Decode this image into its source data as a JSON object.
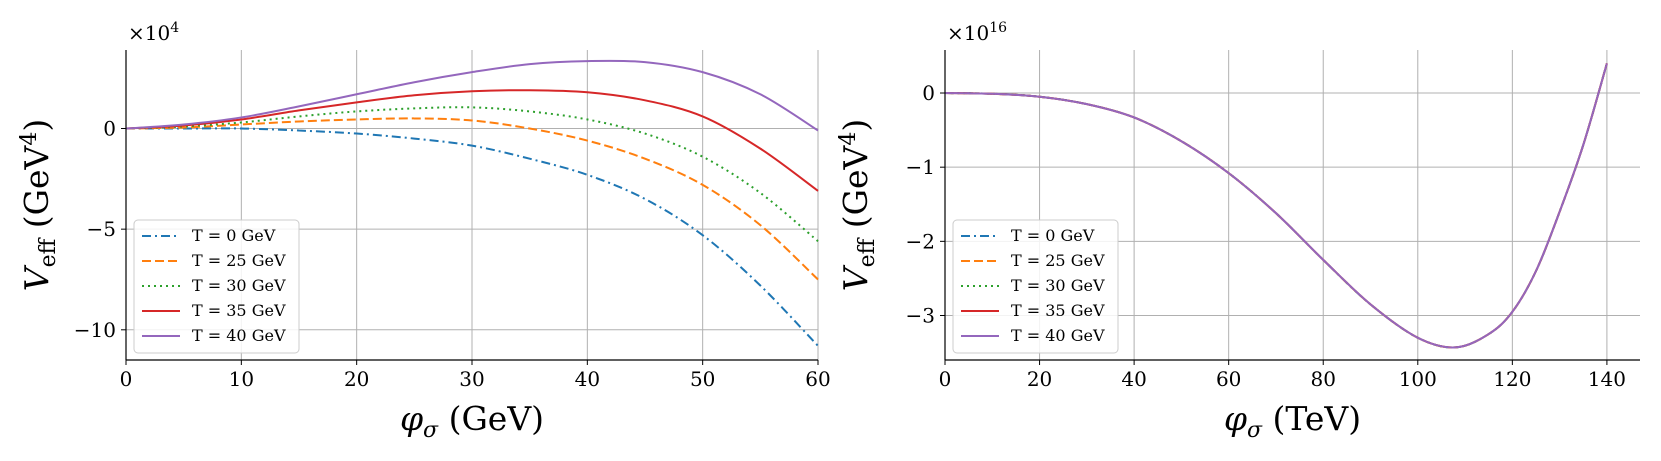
{
  "chart_data": [
    {
      "type": "line",
      "xlabel": "φ_σ (GeV)",
      "ylabel": "V_eff (GeV^4)",
      "multiplier_label": "×10^4",
      "xlim": [
        0,
        60
      ],
      "ylim": [
        -11.5,
        3.9
      ],
      "xticks": [
        0,
        10,
        20,
        30,
        40,
        50,
        60
      ],
      "yticks": [
        0,
        -5,
        -10
      ],
      "grid": true,
      "legend_position": "lower-left",
      "x": [
        0,
        5,
        10,
        15,
        20,
        25,
        30,
        35,
        40,
        45,
        50,
        55,
        60
      ],
      "series": [
        {
          "name": "T = 0 GeV",
          "color": "#1f77b4",
          "dash": "dashdot",
          "values": [
            0,
            0.0,
            0.0,
            -0.1,
            -0.25,
            -0.5,
            -0.85,
            -1.5,
            -2.3,
            -3.5,
            -5.3,
            -7.8,
            -10.8
          ]
        },
        {
          "name": "T = 25 GeV",
          "color": "#ff7f0e",
          "dash": "dashed",
          "values": [
            0,
            0.05,
            0.2,
            0.35,
            0.45,
            0.5,
            0.4,
            0.0,
            -0.6,
            -1.5,
            -2.8,
            -4.8,
            -7.5
          ]
        },
        {
          "name": "T = 30 GeV",
          "color": "#2ca02c",
          "dash": "dotted",
          "values": [
            0,
            0.1,
            0.3,
            0.6,
            0.85,
            1.0,
            1.05,
            0.85,
            0.45,
            -0.25,
            -1.4,
            -3.2,
            -5.6
          ]
        },
        {
          "name": "T = 35 GeV",
          "color": "#d62728",
          "dash": "solid",
          "values": [
            0,
            0.15,
            0.45,
            0.9,
            1.3,
            1.65,
            1.85,
            1.9,
            1.8,
            1.4,
            0.6,
            -1.0,
            -3.1
          ]
        },
        {
          "name": "T = 40 GeV",
          "color": "#9467bd",
          "dash": "solid",
          "values": [
            0,
            0.2,
            0.55,
            1.1,
            1.7,
            2.3,
            2.8,
            3.2,
            3.35,
            3.3,
            2.8,
            1.7,
            -0.1
          ]
        }
      ]
    },
    {
      "type": "line",
      "xlabel": "φ_σ (TeV)",
      "ylabel": "V_eff (GeV^4)",
      "multiplier_label": "×10^16",
      "xlim": [
        0,
        147
      ],
      "ylim": [
        -3.6,
        0.58
      ],
      "xticks": [
        0,
        20,
        40,
        60,
        80,
        100,
        120,
        140
      ],
      "yticks": [
        0,
        -1,
        -2,
        -3
      ],
      "grid": true,
      "legend_position": "lower-left",
      "x": [
        0,
        10,
        20,
        30,
        40,
        50,
        60,
        70,
        80,
        90,
        100,
        108,
        115,
        120,
        125,
        130,
        135,
        140
      ],
      "series": [
        {
          "name": "T = 0 GeV",
          "color": "#1f77b4",
          "dash": "dashdot",
          "values": [
            0,
            -0.01,
            -0.05,
            -0.15,
            -0.33,
            -0.65,
            -1.08,
            -1.62,
            -2.25,
            -2.85,
            -3.3,
            -3.43,
            -3.25,
            -2.95,
            -2.4,
            -1.6,
            -0.7,
            0.4
          ]
        },
        {
          "name": "T = 25 GeV",
          "color": "#ff7f0e",
          "dash": "dashed",
          "values": [
            0,
            -0.01,
            -0.05,
            -0.15,
            -0.33,
            -0.65,
            -1.08,
            -1.62,
            -2.25,
            -2.85,
            -3.3,
            -3.43,
            -3.25,
            -2.95,
            -2.4,
            -1.6,
            -0.7,
            0.4
          ]
        },
        {
          "name": "T = 30 GeV",
          "color": "#2ca02c",
          "dash": "dotted",
          "values": [
            0,
            -0.01,
            -0.05,
            -0.15,
            -0.33,
            -0.65,
            -1.08,
            -1.62,
            -2.25,
            -2.85,
            -3.3,
            -3.43,
            -3.25,
            -2.95,
            -2.4,
            -1.6,
            -0.7,
            0.4
          ]
        },
        {
          "name": "T = 35 GeV",
          "color": "#d62728",
          "dash": "solid",
          "values": [
            0,
            -0.01,
            -0.05,
            -0.15,
            -0.33,
            -0.65,
            -1.08,
            -1.62,
            -2.25,
            -2.85,
            -3.3,
            -3.43,
            -3.25,
            -2.95,
            -2.4,
            -1.6,
            -0.7,
            0.4
          ]
        },
        {
          "name": "T = 40 GeV",
          "color": "#9467bd",
          "dash": "solid",
          "values": [
            0,
            -0.01,
            -0.05,
            -0.15,
            -0.33,
            -0.65,
            -1.08,
            -1.62,
            -2.25,
            -2.85,
            -3.3,
            -3.43,
            -3.25,
            -2.95,
            -2.4,
            -1.6,
            -0.7,
            0.4
          ]
        }
      ]
    }
  ]
}
